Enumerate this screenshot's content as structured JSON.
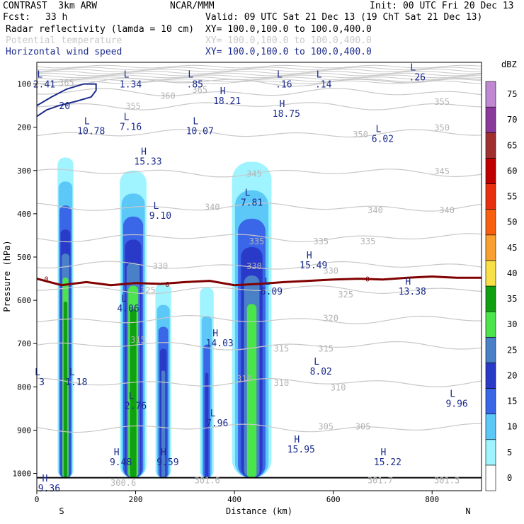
{
  "header": {
    "model": "CONTRAST  3km ARW",
    "center": "NCAR/MMM",
    "init": "Init: 00 UTC Fri 20 Dec 13",
    "fcst_label": "Fcst:",
    "fcst_value": "33 h",
    "valid": "Valid: 09 UTC Sat 21 Dec 13 (19 ChT Sat 21 Dec 13)"
  },
  "fields": [
    {
      "name": "Radar reflectivity (lamda = 10 cm)",
      "xy": "XY= 100.0,100.0 to 100.0,400.0",
      "color": "#000000"
    },
    {
      "name": "Potential temperature",
      "xy": "XY= 100.0,100.0 to 100.0,400.0",
      "color": "#c8c8c8"
    },
    {
      "name": "Horizontal wind speed",
      "xy": "XY= 100.0,100.0 to 100.0,400.0",
      "color": "#1a2a8c"
    }
  ],
  "chart_data": {
    "type": "heatmap",
    "title": "",
    "xlabel": "Distance (km)",
    "ylabel": "Pressure (hPa)",
    "xlim": [
      0,
      900
    ],
    "ylim": [
      1040,
      50
    ],
    "xticks": [
      0,
      200,
      400,
      600,
      800
    ],
    "yticks": [
      100,
      200,
      300,
      400,
      500,
      600,
      700,
      800,
      900,
      1000
    ],
    "x_end_labels": [
      "S",
      "N"
    ],
    "colorbar": {
      "unit": "dBZ",
      "levels": [
        0,
        5,
        10,
        15,
        20,
        25,
        30,
        35,
        40,
        45,
        50,
        55,
        60,
        65,
        70,
        75
      ],
      "colors": [
        "#ffffff",
        "#a0f4ff",
        "#5cc8f8",
        "#3a66e8",
        "#2a3ac8",
        "#4a80c8",
        "#4ce44c",
        "#10a010",
        "#f8e048",
        "#f8a030",
        "#f86010",
        "#e83010",
        "#c00000",
        "#a03030",
        "#8a3a9a",
        "#c088d0"
      ]
    },
    "reflectivity_cells": [
      {
        "x": [
          42,
          74
        ],
        "p": [
          270,
          1010
        ],
        "max_dbz": 35
      },
      {
        "x": [
          168,
          222
        ],
        "p": [
          300,
          1010
        ],
        "max_dbz": 35
      },
      {
        "x": [
          240,
          272
        ],
        "p": [
          560,
          1010
        ],
        "max_dbz": 25
      },
      {
        "x": [
          330,
          358
        ],
        "p": [
          570,
          1010
        ],
        "max_dbz": 20
      },
      {
        "x": [
          395,
          475
        ],
        "p": [
          280,
          1010
        ],
        "max_dbz": 30
      }
    ],
    "theta_isentropes": [
      {
        "label": "365",
        "p": 95
      },
      {
        "label": "360",
        "p": 120
      },
      {
        "label": "355",
        "p": 150
      },
      {
        "label": "350",
        "p": 215
      },
      {
        "label": "345",
        "p": 305
      },
      {
        "label": "340",
        "p": 385
      },
      {
        "label": "335",
        "p": 455
      },
      {
        "label": "330",
        "p": 520
      },
      {
        "label": "325",
        "p": 575
      },
      {
        "label": "320",
        "p": 645
      },
      {
        "label": "315",
        "p": 705
      },
      {
        "label": "310",
        "p": 790
      },
      {
        "label": "305",
        "p": 895
      }
    ],
    "theta_labels": [
      {
        "text": "365",
        "x": 60,
        "p": 96
      },
      {
        "text": "360",
        "x": 265,
        "p": 126
      },
      {
        "text": "365",
        "x": 330,
        "p": 112
      },
      {
        "text": "355",
        "x": 195,
        "p": 150
      },
      {
        "text": "355",
        "x": 820,
        "p": 140
      },
      {
        "text": "350",
        "x": 655,
        "p": 215
      },
      {
        "text": "350",
        "x": 820,
        "p": 200
      },
      {
        "text": "345",
        "x": 440,
        "p": 306
      },
      {
        "text": "345",
        "x": 820,
        "p": 300
      },
      {
        "text": "340",
        "x": 355,
        "p": 383
      },
      {
        "text": "340",
        "x": 685,
        "p": 390
      },
      {
        "text": "340",
        "x": 830,
        "p": 390
      },
      {
        "text": "335",
        "x": 445,
        "p": 462
      },
      {
        "text": "335",
        "x": 575,
        "p": 462
      },
      {
        "text": "335",
        "x": 670,
        "p": 462
      },
      {
        "text": "330",
        "x": 250,
        "p": 520
      },
      {
        "text": "330",
        "x": 440,
        "p": 520
      },
      {
        "text": "330",
        "x": 595,
        "p": 530
      },
      {
        "text": "325",
        "x": 225,
        "p": 575
      },
      {
        "text": "325",
        "x": 625,
        "p": 585
      },
      {
        "text": "320",
        "x": 595,
        "p": 640
      },
      {
        "text": "315",
        "x": 205,
        "p": 690
      },
      {
        "text": "315",
        "x": 495,
        "p": 710
      },
      {
        "text": "315",
        "x": 585,
        "p": 710
      },
      {
        "text": "310",
        "x": 420,
        "p": 780
      },
      {
        "text": "310",
        "x": 495,
        "p": 790
      },
      {
        "text": "310",
        "x": 610,
        "p": 800
      },
      {
        "text": "305",
        "x": 585,
        "p": 890
      },
      {
        "text": "305",
        "x": 660,
        "p": 890
      },
      {
        "text": "300.6",
        "x": 175,
        "p": 1020
      },
      {
        "text": "301.6",
        "x": 345,
        "p": 1015
      },
      {
        "text": "301.7",
        "x": 695,
        "p": 1015
      },
      {
        "text": "301.3",
        "x": 830,
        "p": 1015
      }
    ],
    "zero_degree_line": {
      "label": "0",
      "x": [
        0,
        50,
        100,
        150,
        200,
        250,
        300,
        350,
        400,
        450,
        500,
        550,
        600,
        650,
        700,
        750,
        800,
        850,
        900
      ],
      "p": [
        550,
        565,
        558,
        565,
        560,
        562,
        558,
        555,
        565,
        562,
        558,
        555,
        552,
        550,
        552,
        548,
        545,
        548,
        548
      ]
    },
    "wind_contour": {
      "label": "20",
      "x": [
        0,
        20,
        45,
        80,
        110,
        120,
        120,
        95,
        60,
        30,
        0
      ],
      "p": [
        175,
        160,
        150,
        140,
        130,
        115,
        100,
        100,
        112,
        130,
        150
      ]
    },
    "wind_extrema": [
      {
        "type": "L",
        "value": "2.41",
        "x": 15,
        "p": 92
      },
      {
        "type": "L",
        "value": "1.34",
        "x": 190,
        "p": 92
      },
      {
        "type": "L",
        "value": ".85",
        "x": 320,
        "p": 92
      },
      {
        "type": "L",
        "value": ".16",
        "x": 500,
        "p": 92
      },
      {
        "type": "L",
        "value": ".14",
        "x": 580,
        "p": 92
      },
      {
        "type": "L",
        "value": ".26",
        "x": 770,
        "p": 75
      },
      {
        "type": "H",
        "value": "18.21",
        "x": 385,
        "p": 130
      },
      {
        "type": "H",
        "value": "18.75",
        "x": 505,
        "p": 160
      },
      {
        "type": "L",
        "value": "10.78",
        "x": 110,
        "p": 200
      },
      {
        "type": "L",
        "value": "7.16",
        "x": 190,
        "p": 190
      },
      {
        "type": "L",
        "value": "10.07",
        "x": 330,
        "p": 200
      },
      {
        "type": "L",
        "value": "6.02",
        "x": 700,
        "p": 218
      },
      {
        "type": "H",
        "value": "15.33",
        "x": 225,
        "p": 270
      },
      {
        "type": "L",
        "value": "9.10",
        "x": 250,
        "p": 395
      },
      {
        "type": "L",
        "value": "7.81",
        "x": 435,
        "p": 365
      },
      {
        "type": "H",
        "value": "15.49",
        "x": 560,
        "p": 510
      },
      {
        "type": "H",
        "value": "13.38",
        "x": 760,
        "p": 570
      },
      {
        "type": "L",
        "value": "6.09",
        "x": 475,
        "p": 570
      },
      {
        "type": "L",
        "value": "4.06",
        "x": 185,
        "p": 610
      },
      {
        "type": "H",
        "value": "14.03",
        "x": 370,
        "p": 690
      },
      {
        "type": "L",
        "value": "8.02",
        "x": 575,
        "p": 755
      },
      {
        "type": "L",
        "value": "3",
        "x": 10,
        "p": 780
      },
      {
        "type": "L",
        "value": "1.18",
        "x": 80,
        "p": 780
      },
      {
        "type": "L",
        "value": "2.76",
        "x": 200,
        "p": 835
      },
      {
        "type": "L",
        "value": "9.96",
        "x": 850,
        "p": 830
      },
      {
        "type": "L",
        "value": "7.96",
        "x": 365,
        "p": 875
      },
      {
        "type": "H",
        "value": "15.95",
        "x": 535,
        "p": 935
      },
      {
        "type": "H",
        "value": "9.48",
        "x": 170,
        "p": 965
      },
      {
        "type": "H",
        "value": "9.59",
        "x": 265,
        "p": 965
      },
      {
        "type": "H",
        "value": "15.22",
        "x": 710,
        "p": 965
      },
      {
        "type": "H",
        "value": "9.36",
        "x": 25,
        "p": 1025
      }
    ]
  }
}
